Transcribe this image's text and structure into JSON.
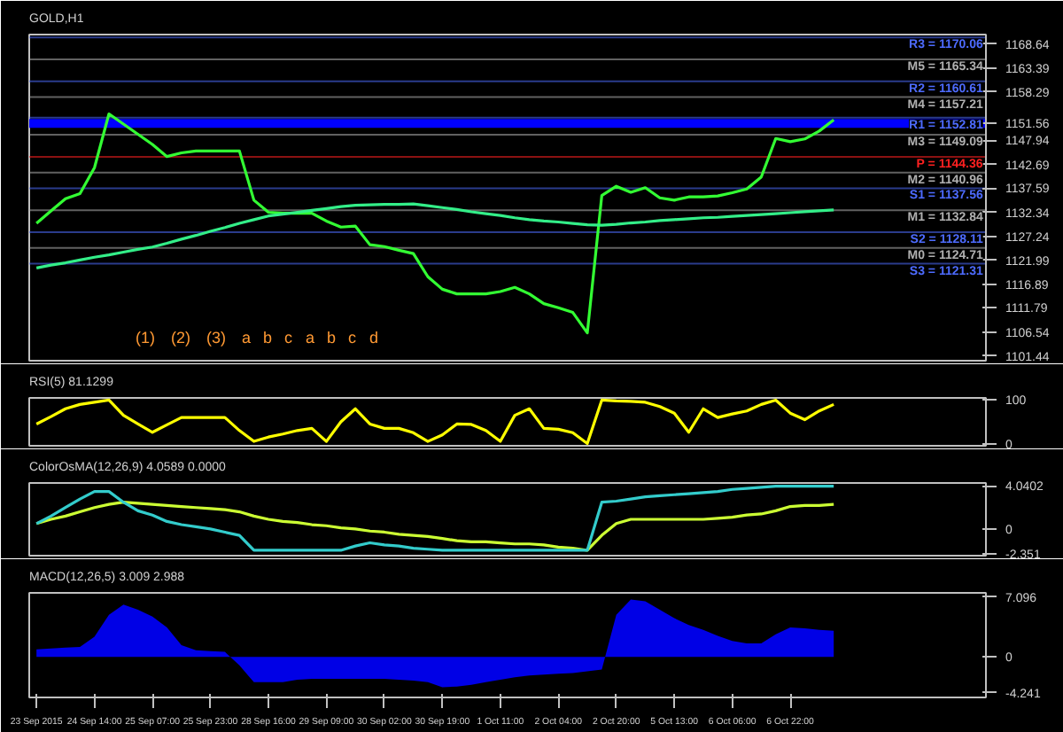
{
  "chart_data": [
    {
      "type": "line",
      "title": "GOLD,H1",
      "ylim": [
        1100.4,
        1170.7
      ],
      "tick_labels": "y",
      "grid": false,
      "categories": [
        null,
        null,
        null,
        null,
        null,
        null,
        null,
        null,
        null,
        null,
        null,
        null,
        null,
        null,
        null,
        null,
        null,
        null,
        null,
        null,
        null,
        null,
        null,
        null,
        null,
        null,
        null,
        null,
        null,
        null,
        null,
        null,
        null,
        null,
        null,
        null,
        null,
        null,
        null,
        null,
        null,
        null,
        null,
        null,
        null,
        null,
        null,
        null,
        null,
        null,
        null,
        null,
        null,
        null,
        null,
        null,
        null,
        null,
        null,
        null,
        null,
        null,
        null,
        null,
        null,
        null
      ],
      "yticks": [
        1101.44,
        1106.54,
        1111.79,
        1116.89,
        1121.99,
        1127.24,
        1132.34,
        1137.59,
        1142.69,
        1147.94,
        1151.56,
        1158.29,
        1163.39,
        1168.64
      ],
      "series": [
        {
          "color": "#33ff33",
          "values": [
            1130.0,
            1132.7,
            1135.3,
            1136.4,
            1142.0,
            1153.6,
            1151.4,
            1149.2,
            1147.0,
            1144.4,
            1145.2,
            1145.6,
            1145.6,
            1145.6,
            1145.6,
            1135.0,
            1132.4,
            1132.2,
            1132.2,
            1132.2,
            1130.5,
            1129.2,
            1129.4,
            1125.4,
            1125.0,
            1124.2,
            1123.5,
            1118.5,
            1115.8,
            1114.8,
            1114.8,
            1114.8,
            1115.3,
            1116.2,
            1114.8,
            1112.7,
            1111.8,
            1110.8,
            1106.4,
            1136.0,
            1138.0,
            1136.7,
            1137.7,
            1135.5,
            1135.0,
            1135.7,
            1135.7,
            1135.9,
            1136.6,
            1137.4,
            1140.0,
            1148.3,
            1147.6,
            1148.2,
            1149.9,
            1152.3,
            null,
            null,
            null,
            null,
            null,
            null,
            null,
            null,
            null,
            null
          ]
        },
        {
          "color": "#33ee88",
          "values": [
            1120.4,
            1121.0,
            1121.5,
            1122.1,
            1122.7,
            1123.2,
            1123.8,
            1124.4,
            1124.9,
            1125.7,
            1126.6,
            1127.4,
            1128.3,
            1129.1,
            1130.0,
            1130.8,
            1131.6,
            1132.0,
            1132.4,
            1132.8,
            1133.2,
            1133.6,
            1133.9,
            1134.0,
            1134.1,
            1134.1,
            1134.2,
            1133.8,
            1133.4,
            1133.0,
            1132.5,
            1132.1,
            1131.7,
            1131.2,
            1130.8,
            1130.5,
            1130.3,
            1130.0,
            1129.7,
            1129.6,
            1129.8,
            1130.1,
            1130.3,
            1130.6,
            1130.8,
            1131.0,
            1131.2,
            1131.3,
            1131.5,
            1131.7,
            1131.9,
            1132.1,
            1132.3,
            1132.5,
            1132.7,
            1132.9,
            null,
            null,
            null,
            null,
            null,
            null,
            null,
            null,
            null,
            null
          ]
        }
      ],
      "ref_lines": [
        {
          "axis": "y",
          "value": 1151.56,
          "color": "#0000ff"
        },
        {
          "axis": "y",
          "value": 1170.06,
          "label": "R3 = 1170.06",
          "color": "#4d6bff"
        },
        {
          "axis": "y",
          "value": 1165.34,
          "label": "M5 = 1165.34",
          "color": "#b0b0b0"
        },
        {
          "axis": "y",
          "value": 1160.61,
          "label": "R2 = 1160.61",
          "color": "#4d6bff"
        },
        {
          "axis": "y",
          "value": 1157.21,
          "label": "M4 = 1157.21",
          "color": "#b0b0b0"
        },
        {
          "axis": "y",
          "value": 1152.81,
          "label": "R1 = 1152.81",
          "color": "#4d6bff"
        },
        {
          "axis": "y",
          "value": 1149.09,
          "label": "M3 = 1149.09",
          "color": "#b0b0b0"
        },
        {
          "axis": "y",
          "value": 1144.36,
          "label": "P = 1144.36",
          "color": "#ff2020"
        },
        {
          "axis": "y",
          "value": 1140.96,
          "label": "M2 = 1140.96",
          "color": "#b0b0b0"
        },
        {
          "axis": "y",
          "value": 1137.56,
          "label": "S1 = 1137.56",
          "color": "#4d6bff"
        },
        {
          "axis": "y",
          "value": 1132.84,
          "label": "M1 = 1132.84",
          "color": "#b0b0b0"
        },
        {
          "axis": "y",
          "value": 1128.11,
          "label": "S2 = 1128.11",
          "color": "#4d6bff"
        },
        {
          "axis": "y",
          "value": 1124.71,
          "label": "M0 = 1124.71",
          "color": "#b0b0b0"
        },
        {
          "axis": "y",
          "value": 1121.31,
          "label": "S3 = 1121.31",
          "color": "#4d6bff"
        }
      ],
      "annotations": [
        "(1)",
        "(2)",
        "(3)",
        "a",
        "b",
        "c",
        "a",
        "b",
        "c",
        "d"
      ]
    },
    {
      "type": "line",
      "title": "RSI(5) 81.1299",
      "ylim": [
        -5,
        105
      ],
      "yticks": [
        0,
        100
      ],
      "tick_labels": "y",
      "grid": false,
      "categories": [
        null,
        null,
        null,
        null,
        null,
        null,
        null,
        null,
        null,
        null,
        null,
        null,
        null,
        null,
        null,
        null,
        null,
        null,
        null,
        null,
        null,
        null,
        null,
        null,
        null,
        null,
        null,
        null,
        null,
        null,
        null,
        null,
        null,
        null,
        null,
        null,
        null,
        null,
        null,
        null,
        null,
        null,
        null,
        null,
        null,
        null,
        null,
        null,
        null,
        null,
        null,
        null,
        null,
        null,
        null,
        null,
        null,
        null,
        null,
        null,
        null,
        null,
        null,
        null,
        null,
        null
      ],
      "series": [
        {
          "color": "#ffff00",
          "values": [
            45,
            62,
            80,
            90,
            95,
            100,
            65,
            45,
            26,
            43,
            60,
            60,
            60,
            60,
            30,
            5,
            15,
            22,
            30,
            35,
            5,
            50,
            80,
            45,
            35,
            35,
            25,
            5,
            20,
            45,
            44,
            30,
            5,
            65,
            80,
            35,
            33,
            25,
            0,
            100,
            98,
            97,
            95,
            85,
            70,
            26,
            80,
            60,
            68,
            75,
            90,
            100,
            70,
            55,
            75,
            90,
            null,
            null,
            null,
            null,
            null,
            null,
            null,
            null,
            null,
            null
          ]
        }
      ]
    },
    {
      "type": "line",
      "title": "ColorOsMA(12,26,9) 4.0589 0.0000",
      "ylim": [
        -2.5,
        4.3
      ],
      "yticks": [
        -2.351,
        0,
        4.0402
      ],
      "tick_labels": "y",
      "grid": false,
      "categories": [
        null,
        null,
        null,
        null,
        null,
        null,
        null,
        null,
        null,
        null,
        null,
        null,
        null,
        null,
        null,
        null,
        null,
        null,
        null,
        null,
        null,
        null,
        null,
        null,
        null,
        null,
        null,
        null,
        null,
        null,
        null,
        null,
        null,
        null,
        null,
        null,
        null,
        null,
        null,
        null,
        null,
        null,
        null,
        null,
        null,
        null,
        null,
        null,
        null,
        null,
        null,
        null,
        null,
        null,
        null,
        null,
        null,
        null,
        null,
        null,
        null,
        null,
        null,
        null,
        null,
        null
      ],
      "series": [
        {
          "color": "#ccff33",
          "values": [
            0.5,
            0.9,
            1.2,
            1.6,
            2.0,
            2.3,
            2.5,
            2.4,
            2.3,
            2.2,
            2.1,
            2.0,
            1.9,
            1.8,
            1.6,
            1.2,
            0.9,
            0.7,
            0.6,
            0.4,
            0.3,
            0.1,
            0.0,
            -0.2,
            -0.3,
            -0.5,
            -0.6,
            -0.7,
            -0.9,
            -1.1,
            -1.2,
            -1.2,
            -1.3,
            -1.4,
            -1.4,
            -1.5,
            -1.7,
            -1.8,
            -2.0,
            -0.6,
            0.5,
            0.9,
            0.9,
            0.9,
            0.9,
            0.9,
            0.9,
            1.0,
            1.1,
            1.3,
            1.4,
            1.7,
            2.1,
            2.2,
            2.2,
            2.3,
            null,
            null,
            null,
            null,
            null,
            null,
            null,
            null,
            null,
            null
          ]
        },
        {
          "color": "#33cccc",
          "values": [
            0.5,
            1.2,
            2.0,
            2.8,
            3.5,
            3.5,
            2.5,
            1.7,
            1.3,
            0.7,
            0.4,
            0.2,
            0.0,
            -0.3,
            -0.6,
            -2.0,
            -2.0,
            -2.0,
            -2.0,
            -2.0,
            -2.0,
            -2.0,
            -1.6,
            -1.3,
            -1.5,
            -1.6,
            -1.8,
            -1.9,
            -2.0,
            -2.0,
            -2.0,
            -2.0,
            -2.0,
            -2.0,
            -2.0,
            -2.0,
            -2.0,
            -2.0,
            -2.0,
            2.5,
            2.6,
            2.8,
            3.0,
            3.1,
            3.2,
            3.3,
            3.4,
            3.5,
            3.7,
            3.8,
            3.9,
            4.0,
            4.0,
            4.0,
            4.0,
            4.0,
            null,
            null,
            null,
            null,
            null,
            null,
            null,
            null,
            null,
            null
          ]
        }
      ]
    },
    {
      "type": "area",
      "title": "MACD(12,26,5) 3.009 2.988",
      "ylim": [
        -4.8,
        7.6
      ],
      "yticks": [
        -4.241,
        0,
        7.096
      ],
      "grid": false,
      "categories": [
        "23 Sep 2015",
        null,
        null,
        null,
        "24 Sep 14:00",
        null,
        null,
        null,
        "25 Sep 07:00",
        null,
        null,
        null,
        "25 Sep 23:00",
        null,
        null,
        null,
        "28 Sep 16:00",
        null,
        null,
        null,
        "29 Sep 09:00",
        null,
        null,
        null,
        "30 Sep 02:00",
        null,
        null,
        null,
        "30 Sep 19:00",
        null,
        null,
        null,
        "1 Oct 11:00",
        null,
        null,
        null,
        "2 Oct 04:00",
        null,
        null,
        null,
        "2 Oct 20:00",
        null,
        null,
        null,
        "5 Oct 13:00",
        null,
        null,
        null,
        "6 Oct 06:00",
        null,
        null,
        null,
        "6 Oct 22:00",
        null,
        null,
        null,
        null,
        null,
        null,
        null,
        null,
        null,
        null,
        null,
        null,
        null
      ],
      "series": [
        {
          "color": "#0000ff",
          "values": [
            0.9,
            1.0,
            1.1,
            1.2,
            2.4,
            5.0,
            6.2,
            5.6,
            4.8,
            3.5,
            1.4,
            0.8,
            0.7,
            0.6,
            -1.0,
            -3.0,
            -3.0,
            -3.0,
            -2.7,
            -2.6,
            -2.6,
            -2.6,
            -2.6,
            -2.6,
            -2.6,
            -2.7,
            -2.8,
            -3.0,
            -3.6,
            -3.5,
            -3.3,
            -3.0,
            -2.7,
            -2.4,
            -2.2,
            -2.1,
            -2.0,
            -1.9,
            -1.7,
            -1.5,
            5.0,
            6.8,
            6.6,
            5.6,
            4.6,
            3.8,
            3.2,
            2.5,
            1.9,
            1.6,
            1.6,
            2.7,
            3.5,
            3.4,
            3.2,
            3.1,
            null,
            null,
            null,
            null,
            null,
            null,
            null,
            null,
            null,
            null
          ]
        }
      ]
    }
  ]
}
